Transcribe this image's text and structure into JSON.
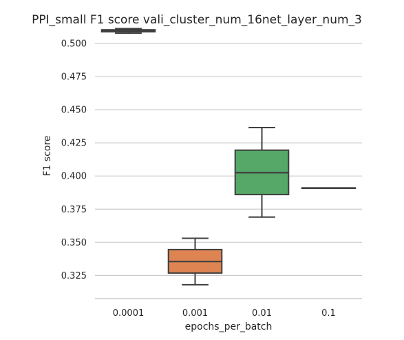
{
  "chart_data": {
    "type": "box",
    "title": "PPI_small F1 score vali_cluster_num_16net_layer_num_3",
    "xlabel": "epochs_per_batch",
    "ylabel": "F1 score",
    "ylim": [
      0.3075,
      0.513
    ],
    "yticks": [
      0.325,
      0.35,
      0.375,
      0.4,
      0.425,
      0.45,
      0.475,
      0.5
    ],
    "ytick_labels": [
      "0.325",
      "0.350",
      "0.375",
      "0.400",
      "0.425",
      "0.450",
      "0.475",
      "0.500"
    ],
    "grid": "horizontal",
    "categories": [
      "0.0001",
      "0.001",
      "0.01",
      "0.1"
    ],
    "boxes": [
      {
        "category": "0.0001",
        "whislo": 0.5077,
        "q1": 0.5088,
        "med": 0.5094,
        "q3": 0.5103,
        "whishi": 0.5112,
        "color": "#4c72b0"
      },
      {
        "category": "0.001",
        "whislo": 0.318,
        "q1": 0.3268,
        "med": 0.3355,
        "q3": 0.3445,
        "whishi": 0.353,
        "color": "#dd8452"
      },
      {
        "category": "0.01",
        "whislo": 0.369,
        "q1": 0.386,
        "med": 0.4025,
        "q3": 0.4195,
        "whishi": 0.4365,
        "color": "#55a868"
      },
      {
        "category": "0.1",
        "whislo": 0.391,
        "q1": 0.391,
        "med": 0.391,
        "q3": 0.391,
        "whishi": 0.391,
        "color": "#c44e52"
      }
    ]
  }
}
